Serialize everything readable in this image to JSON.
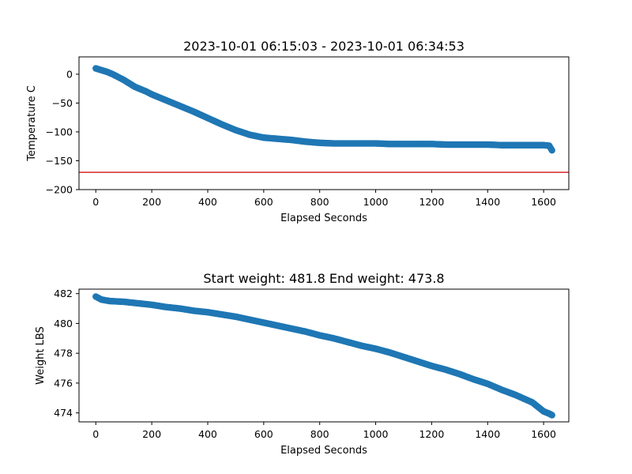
{
  "chart_data": [
    {
      "type": "scatter",
      "title": "2023-10-01 06:15:03 - 2023-10-01 06:34:53",
      "xlabel": "Elapsed Seconds",
      "ylabel": "Temperature C",
      "xlim": [
        -60,
        1690
      ],
      "ylim": [
        -200,
        30
      ],
      "xticks": [
        0,
        200,
        400,
        600,
        800,
        1000,
        1200,
        1400,
        1600
      ],
      "yticks": [
        0,
        -50,
        -100,
        -150,
        -200
      ],
      "grid": false,
      "color": "#1f77b4",
      "reference_line": {
        "y": -170,
        "color": "#d62728"
      },
      "series": [
        {
          "x": [
            0,
            20,
            40,
            60,
            80,
            100,
            120,
            140,
            160,
            180,
            200,
            250,
            300,
            350,
            400,
            450,
            500,
            550,
            600,
            650,
            700,
            750,
            800,
            850,
            900,
            950,
            1000,
            1050,
            1100,
            1150,
            1200,
            1250,
            1300,
            1350,
            1400,
            1450,
            1500,
            1550,
            1600,
            1620,
            1630
          ],
          "y": [
            10,
            7,
            4,
            0,
            -5,
            -10,
            -16,
            -22,
            -26,
            -30,
            -35,
            -45,
            -55,
            -65,
            -76,
            -87,
            -97,
            -105,
            -110,
            -112,
            -114,
            -117,
            -119,
            -120,
            -120,
            -120,
            -120,
            -121,
            -121,
            -121,
            -121,
            -122,
            -122,
            -122,
            -122,
            -123,
            -123,
            -123,
            -123,
            -124,
            -132
          ]
        }
      ]
    },
    {
      "type": "scatter",
      "title": "Start weight: 481.8 End weight: 473.8",
      "xlabel": "Elapsed Seconds",
      "ylabel": "Weight LBS",
      "xlim": [
        -60,
        1690
      ],
      "ylim": [
        473.4,
        482.3
      ],
      "xticks": [
        0,
        200,
        400,
        600,
        800,
        1000,
        1200,
        1400,
        1600
      ],
      "yticks": [
        474,
        476,
        478,
        480,
        482
      ],
      "grid": false,
      "color": "#1f77b4",
      "series": [
        {
          "x": [
            0,
            20,
            50,
            100,
            150,
            200,
            250,
            300,
            350,
            400,
            450,
            500,
            550,
            600,
            650,
            700,
            750,
            800,
            850,
            900,
            950,
            1000,
            1050,
            1100,
            1150,
            1200,
            1250,
            1300,
            1350,
            1400,
            1450,
            1500,
            1530,
            1560,
            1580,
            1600,
            1620,
            1630
          ],
          "y": [
            481.8,
            481.6,
            481.5,
            481.45,
            481.35,
            481.25,
            481.1,
            481.0,
            480.85,
            480.75,
            480.6,
            480.45,
            480.25,
            480.05,
            479.85,
            479.65,
            479.45,
            479.2,
            479.0,
            478.75,
            478.5,
            478.3,
            478.05,
            477.75,
            477.45,
            477.15,
            476.9,
            476.6,
            476.25,
            475.95,
            475.55,
            475.2,
            474.95,
            474.7,
            474.4,
            474.1,
            473.95,
            473.85
          ]
        }
      ]
    }
  ]
}
